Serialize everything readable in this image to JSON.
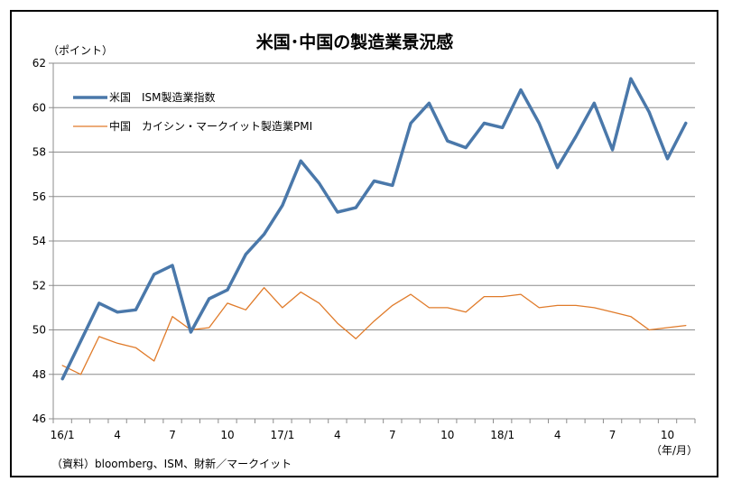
{
  "chart_data": {
    "type": "line",
    "title": "米国･中国の製造業景況感",
    "ylabel": "（ポイント）",
    "xlabel": "（年/月）",
    "source": "（資料）bloomberg、ISM、財新／マークイット",
    "ylim": [
      46,
      62
    ],
    "yticks": [
      46,
      48,
      50,
      52,
      54,
      56,
      58,
      60,
      62
    ],
    "grid": true,
    "legend_position": "top-left",
    "x": [
      "16/1",
      "16/2",
      "16/3",
      "16/4",
      "16/5",
      "16/6",
      "16/7",
      "16/8",
      "16/9",
      "16/10",
      "16/11",
      "16/12",
      "17/1",
      "17/2",
      "17/3",
      "17/4",
      "17/5",
      "17/6",
      "17/7",
      "17/8",
      "17/9",
      "17/10",
      "17/11",
      "17/12",
      "18/1",
      "18/2",
      "18/3",
      "18/4",
      "18/5",
      "18/6",
      "18/7",
      "18/8",
      "18/9",
      "18/10",
      "18/11"
    ],
    "xtick_labels": [
      "16/1",
      "",
      "",
      "4",
      "",
      "",
      "7",
      "",
      "",
      "10",
      "",
      "",
      "17/1",
      "",
      "",
      "4",
      "",
      "",
      "7",
      "",
      "",
      "10",
      "",
      "",
      "18/1",
      "",
      "",
      "4",
      "",
      "",
      "7",
      "",
      "",
      "10",
      ""
    ],
    "series": [
      {
        "name": "米国　ISM製造業指数",
        "color": "#4a78aa",
        "values": [
          47.8,
          49.5,
          51.2,
          50.8,
          50.9,
          52.5,
          52.9,
          49.9,
          51.4,
          51.8,
          53.4,
          54.3,
          55.6,
          57.6,
          56.6,
          55.3,
          55.5,
          56.7,
          56.5,
          59.3,
          60.2,
          58.5,
          58.2,
          59.3,
          59.1,
          60.8,
          59.3,
          57.3,
          58.7,
          60.2,
          58.1,
          61.3,
          59.8,
          57.7,
          59.3
        ]
      },
      {
        "name": "中国　カイシン・マークイット製造業PMI",
        "color": "#e07b2a",
        "values": [
          48.4,
          48.0,
          49.7,
          49.4,
          49.2,
          48.6,
          50.6,
          50.0,
          50.1,
          51.2,
          50.9,
          51.9,
          51.0,
          51.7,
          51.2,
          50.3,
          49.6,
          50.4,
          51.1,
          51.6,
          51.0,
          51.0,
          50.8,
          51.5,
          51.5,
          51.6,
          51.0,
          51.1,
          51.1,
          51.0,
          50.8,
          50.6,
          50.0,
          50.1,
          50.2
        ]
      }
    ]
  }
}
